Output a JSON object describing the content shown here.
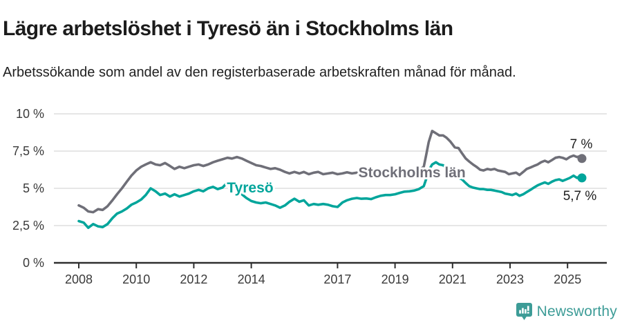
{
  "header": {},
  "footer": {
    "brand": "Newsworthy",
    "brand_color": "#3d9c97"
  },
  "chart_data": {
    "type": "line",
    "title": "Lägre arbetslöshet i Tyresö än i Stockholms län",
    "subtitle": "Arbetssökande som andel av den registerbaserade arbetskraften månad för månad.",
    "xlim": [
      2008,
      2025.58
    ],
    "ylim": [
      0,
      10
    ],
    "grid": "horizontal",
    "legend_position": "inline-labels",
    "x_ticks": [
      {
        "x": 2008,
        "label": "2008"
      },
      {
        "x": 2010,
        "label": "2010"
      },
      {
        "x": 2012,
        "label": "2012"
      },
      {
        "x": 2014,
        "label": "2014"
      },
      {
        "x": 2017,
        "label": "2017"
      },
      {
        "x": 2019,
        "label": "2019"
      },
      {
        "x": 2021,
        "label": "2021"
      },
      {
        "x": 2023,
        "label": "2023"
      },
      {
        "x": 2025,
        "label": "2025"
      }
    ],
    "y_ticks": [
      {
        "y": 0,
        "label": "0 %"
      },
      {
        "y": 2.5,
        "label": "2,5 %"
      },
      {
        "y": 5,
        "label": "5 %"
      },
      {
        "y": 7.5,
        "label": "7,5 %"
      },
      {
        "y": 10,
        "label": "10 %"
      }
    ],
    "colors": {
      "axis": "#2e2e2e",
      "gridline": "#dedede",
      "tick_label": "#3a3a3a",
      "end_label_text": "#1d1d1d"
    },
    "series": [
      {
        "name": "Stockholms län",
        "color": "#6f6f78",
        "end_value_label": "7 %",
        "end_label_offset": {
          "dx": -1,
          "dy": -21
        },
        "inline_label": {
          "x": 2019.59,
          "y": 6.06
        },
        "points": [
          [
            2008.0,
            3.85
          ],
          [
            2008.17,
            3.7
          ],
          [
            2008.33,
            3.45
          ],
          [
            2008.5,
            3.4
          ],
          [
            2008.67,
            3.6
          ],
          [
            2008.83,
            3.55
          ],
          [
            2009.0,
            3.8
          ],
          [
            2009.17,
            4.2
          ],
          [
            2009.33,
            4.6
          ],
          [
            2009.5,
            5.0
          ],
          [
            2009.67,
            5.45
          ],
          [
            2009.83,
            5.85
          ],
          [
            2010.0,
            6.2
          ],
          [
            2010.17,
            6.45
          ],
          [
            2010.33,
            6.6
          ],
          [
            2010.5,
            6.75
          ],
          [
            2010.67,
            6.6
          ],
          [
            2010.83,
            6.55
          ],
          [
            2011.0,
            6.7
          ],
          [
            2011.17,
            6.5
          ],
          [
            2011.33,
            6.3
          ],
          [
            2011.5,
            6.45
          ],
          [
            2011.67,
            6.35
          ],
          [
            2011.83,
            6.45
          ],
          [
            2012.0,
            6.55
          ],
          [
            2012.17,
            6.6
          ],
          [
            2012.33,
            6.5
          ],
          [
            2012.5,
            6.6
          ],
          [
            2012.67,
            6.75
          ],
          [
            2012.83,
            6.85
          ],
          [
            2013.0,
            6.95
          ],
          [
            2013.17,
            7.05
          ],
          [
            2013.33,
            7.0
          ],
          [
            2013.5,
            7.1
          ],
          [
            2013.67,
            7.0
          ],
          [
            2013.83,
            6.85
          ],
          [
            2014.0,
            6.7
          ],
          [
            2014.17,
            6.55
          ],
          [
            2014.33,
            6.5
          ],
          [
            2014.5,
            6.4
          ],
          [
            2014.67,
            6.3
          ],
          [
            2014.83,
            6.35
          ],
          [
            2015.0,
            6.25
          ],
          [
            2015.17,
            6.1
          ],
          [
            2015.33,
            6.0
          ],
          [
            2015.5,
            6.1
          ],
          [
            2015.67,
            6.0
          ],
          [
            2015.83,
            6.1
          ],
          [
            2016.0,
            5.95
          ],
          [
            2016.17,
            6.05
          ],
          [
            2016.33,
            6.1
          ],
          [
            2016.5,
            5.95
          ],
          [
            2016.67,
            6.0
          ],
          [
            2016.83,
            6.05
          ],
          [
            2017.0,
            5.95
          ],
          [
            2017.17,
            6.0
          ],
          [
            2017.33,
            6.08
          ],
          [
            2017.5,
            6.0
          ],
          [
            2017.67,
            6.05
          ],
          [
            2017.83,
            6.0
          ],
          [
            2018.0,
            6.08
          ],
          [
            2018.17,
            6.0
          ],
          [
            2018.33,
            6.05
          ],
          [
            2018.5,
            5.95
          ],
          [
            2018.67,
            6.02
          ],
          [
            2018.83,
            5.95
          ],
          [
            2019.0,
            6.0
          ],
          [
            2019.17,
            5.95
          ],
          [
            2019.33,
            6.0
          ],
          [
            2019.5,
            6.05
          ],
          [
            2019.67,
            6.1
          ],
          [
            2019.83,
            6.2
          ],
          [
            2020.0,
            6.45
          ],
          [
            2020.08,
            7.2
          ],
          [
            2020.17,
            8.1
          ],
          [
            2020.29,
            8.85
          ],
          [
            2020.42,
            8.7
          ],
          [
            2020.54,
            8.55
          ],
          [
            2020.67,
            8.55
          ],
          [
            2020.79,
            8.4
          ],
          [
            2020.92,
            8.15
          ],
          [
            2021.0,
            7.95
          ],
          [
            2021.08,
            7.75
          ],
          [
            2021.21,
            7.7
          ],
          [
            2021.33,
            7.35
          ],
          [
            2021.46,
            7.0
          ],
          [
            2021.58,
            6.8
          ],
          [
            2021.71,
            6.6
          ],
          [
            2021.83,
            6.45
          ],
          [
            2021.96,
            6.25
          ],
          [
            2022.08,
            6.2
          ],
          [
            2022.21,
            6.3
          ],
          [
            2022.33,
            6.25
          ],
          [
            2022.46,
            6.3
          ],
          [
            2022.58,
            6.2
          ],
          [
            2022.71,
            6.15
          ],
          [
            2022.83,
            6.1
          ],
          [
            2022.96,
            5.95
          ],
          [
            2023.08,
            6.0
          ],
          [
            2023.21,
            6.05
          ],
          [
            2023.33,
            5.9
          ],
          [
            2023.46,
            6.1
          ],
          [
            2023.58,
            6.3
          ],
          [
            2023.71,
            6.4
          ],
          [
            2023.83,
            6.5
          ],
          [
            2023.96,
            6.6
          ],
          [
            2024.08,
            6.75
          ],
          [
            2024.21,
            6.85
          ],
          [
            2024.33,
            6.75
          ],
          [
            2024.46,
            6.9
          ],
          [
            2024.58,
            7.05
          ],
          [
            2024.71,
            7.1
          ],
          [
            2024.83,
            7.05
          ],
          [
            2024.96,
            6.95
          ],
          [
            2025.08,
            7.1
          ],
          [
            2025.21,
            7.2
          ],
          [
            2025.33,
            7.1
          ],
          [
            2025.42,
            7.15
          ],
          [
            2025.5,
            7.0
          ]
        ]
      },
      {
        "name": "Tyresö",
        "color": "#00a59b",
        "end_value_label": "5,7 %",
        "end_label_offset": {
          "dx": -3,
          "dy": 26
        },
        "inline_label": {
          "x": 2013.96,
          "y": 5.05
        },
        "points": [
          [
            2008.0,
            2.8
          ],
          [
            2008.17,
            2.7
          ],
          [
            2008.33,
            2.35
          ],
          [
            2008.5,
            2.6
          ],
          [
            2008.67,
            2.45
          ],
          [
            2008.83,
            2.4
          ],
          [
            2009.0,
            2.6
          ],
          [
            2009.17,
            3.0
          ],
          [
            2009.33,
            3.3
          ],
          [
            2009.5,
            3.45
          ],
          [
            2009.67,
            3.65
          ],
          [
            2009.83,
            3.9
          ],
          [
            2010.0,
            4.05
          ],
          [
            2010.17,
            4.25
          ],
          [
            2010.33,
            4.55
          ],
          [
            2010.5,
            5.0
          ],
          [
            2010.67,
            4.8
          ],
          [
            2010.83,
            4.55
          ],
          [
            2011.0,
            4.65
          ],
          [
            2011.17,
            4.45
          ],
          [
            2011.33,
            4.6
          ],
          [
            2011.5,
            4.45
          ],
          [
            2011.67,
            4.55
          ],
          [
            2011.83,
            4.65
          ],
          [
            2012.0,
            4.8
          ],
          [
            2012.17,
            4.9
          ],
          [
            2012.33,
            4.8
          ],
          [
            2012.5,
            5.0
          ],
          [
            2012.67,
            5.1
          ],
          [
            2012.83,
            4.95
          ],
          [
            2013.0,
            5.05
          ],
          [
            2013.17,
            5.4
          ],
          [
            2013.33,
            5.25
          ],
          [
            2013.5,
            4.9
          ],
          [
            2013.67,
            4.6
          ],
          [
            2013.83,
            4.35
          ],
          [
            2014.0,
            4.15
          ],
          [
            2014.17,
            4.05
          ],
          [
            2014.33,
            4.0
          ],
          [
            2014.5,
            4.05
          ],
          [
            2014.67,
            3.95
          ],
          [
            2014.83,
            3.85
          ],
          [
            2015.0,
            3.7
          ],
          [
            2015.17,
            3.85
          ],
          [
            2015.33,
            4.1
          ],
          [
            2015.5,
            4.3
          ],
          [
            2015.67,
            4.1
          ],
          [
            2015.83,
            4.2
          ],
          [
            2016.0,
            3.85
          ],
          [
            2016.17,
            3.95
          ],
          [
            2016.33,
            3.9
          ],
          [
            2016.5,
            3.95
          ],
          [
            2016.67,
            3.9
          ],
          [
            2016.83,
            3.8
          ],
          [
            2017.0,
            3.75
          ],
          [
            2017.17,
            4.05
          ],
          [
            2017.33,
            4.2
          ],
          [
            2017.5,
            4.3
          ],
          [
            2017.67,
            4.35
          ],
          [
            2017.83,
            4.3
          ],
          [
            2018.0,
            4.32
          ],
          [
            2018.17,
            4.28
          ],
          [
            2018.33,
            4.4
          ],
          [
            2018.5,
            4.5
          ],
          [
            2018.67,
            4.55
          ],
          [
            2018.83,
            4.55
          ],
          [
            2019.0,
            4.6
          ],
          [
            2019.17,
            4.7
          ],
          [
            2019.33,
            4.78
          ],
          [
            2019.5,
            4.8
          ],
          [
            2019.67,
            4.85
          ],
          [
            2019.83,
            4.95
          ],
          [
            2020.0,
            5.15
          ],
          [
            2020.08,
            5.6
          ],
          [
            2020.17,
            6.2
          ],
          [
            2020.29,
            6.6
          ],
          [
            2020.42,
            6.75
          ],
          [
            2020.54,
            6.6
          ],
          [
            2020.67,
            6.55
          ],
          [
            2020.79,
            6.35
          ],
          [
            2020.92,
            6.1
          ],
          [
            2021.08,
            5.85
          ],
          [
            2021.21,
            5.7
          ],
          [
            2021.33,
            5.6
          ],
          [
            2021.46,
            5.35
          ],
          [
            2021.58,
            5.15
          ],
          [
            2021.71,
            5.05
          ],
          [
            2021.83,
            5.0
          ],
          [
            2021.96,
            4.95
          ],
          [
            2022.08,
            4.95
          ],
          [
            2022.21,
            4.9
          ],
          [
            2022.33,
            4.9
          ],
          [
            2022.46,
            4.85
          ],
          [
            2022.58,
            4.8
          ],
          [
            2022.71,
            4.75
          ],
          [
            2022.83,
            4.65
          ],
          [
            2022.96,
            4.6
          ],
          [
            2023.08,
            4.55
          ],
          [
            2023.21,
            4.65
          ],
          [
            2023.33,
            4.5
          ],
          [
            2023.46,
            4.6
          ],
          [
            2023.58,
            4.75
          ],
          [
            2023.71,
            4.9
          ],
          [
            2023.83,
            5.05
          ],
          [
            2023.96,
            5.2
          ],
          [
            2024.08,
            5.3
          ],
          [
            2024.21,
            5.4
          ],
          [
            2024.33,
            5.3
          ],
          [
            2024.46,
            5.45
          ],
          [
            2024.58,
            5.55
          ],
          [
            2024.71,
            5.6
          ],
          [
            2024.83,
            5.5
          ],
          [
            2024.96,
            5.6
          ],
          [
            2025.08,
            5.7
          ],
          [
            2025.21,
            5.85
          ],
          [
            2025.33,
            5.7
          ],
          [
            2025.42,
            5.8
          ],
          [
            2025.5,
            5.7
          ]
        ]
      }
    ]
  }
}
